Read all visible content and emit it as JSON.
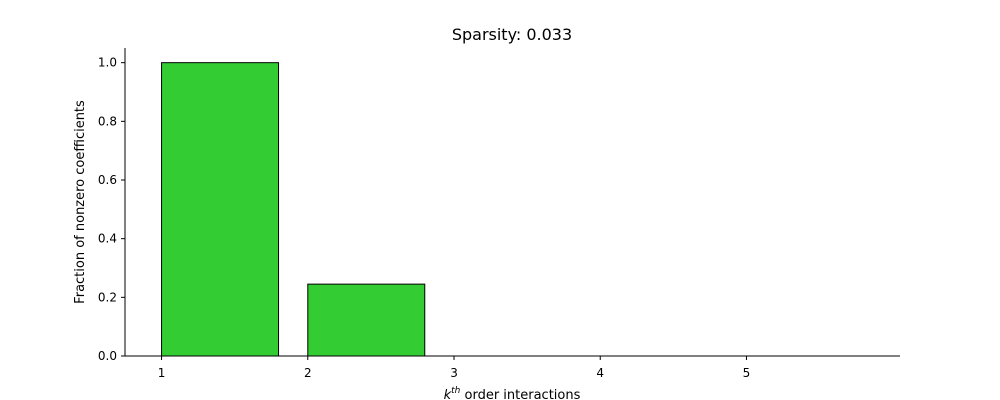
{
  "chart_data": {
    "type": "bar",
    "title": "Sparsity: 0.033",
    "xlabel": {
      "base": "k",
      "sup": "th",
      "rest": " order interactions"
    },
    "ylabel": "Fraction of nonzero coefficients",
    "categories": [
      "1",
      "2",
      "3",
      "4",
      "5"
    ],
    "x": [
      1,
      2,
      3,
      4,
      5
    ],
    "values": [
      1.0,
      0.245,
      0.0,
      0.0,
      0.0
    ],
    "bar_width": 0.8,
    "xlim": [
      0.75,
      6.05
    ],
    "ylim": [
      0,
      1.05
    ],
    "yticks": [
      0.0,
      0.2,
      0.4,
      0.6,
      0.8,
      1.0
    ],
    "ytick_labels": [
      "0.0",
      "0.2",
      "0.4",
      "0.6",
      "0.8",
      "1.0"
    ],
    "bar_color": "#33cc33",
    "edge_color": "#000000",
    "grid": false,
    "legend": false
  }
}
